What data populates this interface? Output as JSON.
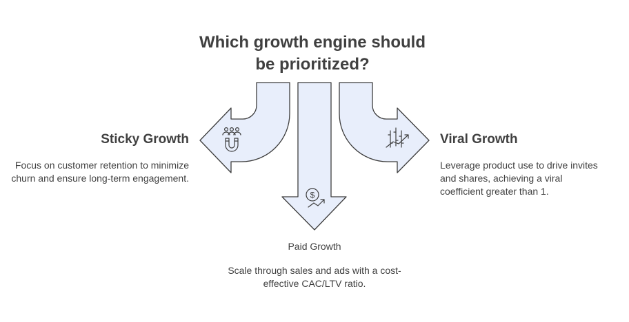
{
  "title": {
    "line1": "Which growth engine should",
    "line2": "be prioritized?"
  },
  "options": {
    "sticky": {
      "heading": "Sticky Growth",
      "description": "Focus on customer retention to minimize churn and ensure long-term engagement.",
      "icon": "magnet-people-icon"
    },
    "paid": {
      "heading": "Paid Growth",
      "description": "Scale through sales and ads with a cost-effective CAC/LTV ratio.",
      "icon": "dollar-growth-icon"
    },
    "viral": {
      "heading": "Viral Growth",
      "description": "Leverage product use to drive invites and shares, achieving a viral coefficient greater than 1.",
      "icon": "chart-trend-icon"
    }
  },
  "colors": {
    "arrow_fill": "#e8eefb",
    "arrow_stroke": "#3d3d3d",
    "text": "#404040"
  }
}
